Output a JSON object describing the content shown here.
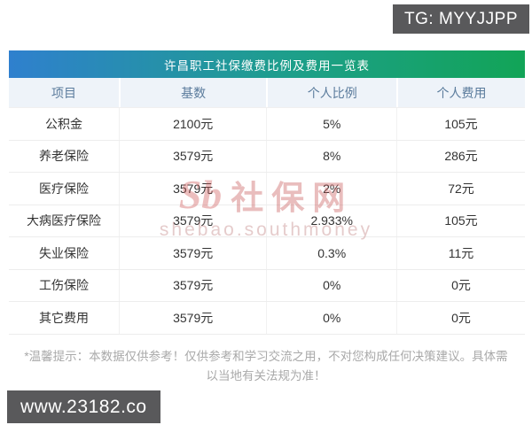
{
  "overlays": {
    "tg_badge": "TG: MYYJJPP",
    "site_badge": "www.23182.co"
  },
  "chart_data": {
    "type": "table",
    "title": "许昌职工社保缴费比例及费用一览表",
    "columns": [
      "项目",
      "基数",
      "个人比例",
      "个人费用"
    ],
    "rows": [
      [
        "公积金",
        "2100元",
        "5%",
        "105元"
      ],
      [
        "养老保险",
        "3579元",
        "8%",
        "286元"
      ],
      [
        "医疗保险",
        "3579元",
        "2%",
        "72元"
      ],
      [
        "大病医疗保险",
        "3579元",
        "2.933%",
        "105元"
      ],
      [
        "失业保险",
        "3579元",
        "0.3%",
        "11元"
      ],
      [
        "工伤保险",
        "3579元",
        "0%",
        "0元"
      ],
      [
        "其它费用",
        "3579元",
        "0%",
        "0元"
      ]
    ],
    "layout_hints": {
      "header_gradient": [
        "#2f80ce",
        "#12a457"
      ],
      "header_row_bg": "#eef3f9",
      "header_text_color": "#5a7b9c",
      "body_text_color": "#333333"
    }
  },
  "watermark": {
    "logo": "Sb",
    "name": "社保网",
    "domain": "shebao.southmoney"
  },
  "disclaimer": {
    "line1": "*温馨提示：本数据仅供参考！仅供参考和学习交流之用，不对您构成任何决策建议。具体需",
    "line2": "以当地有关法规为准！"
  },
  "colors": {
    "badge_bg": "#59595b",
    "gradient_start": "#2f80ce",
    "gradient_end": "#12a457",
    "watermark_red": "#c85a5a"
  }
}
